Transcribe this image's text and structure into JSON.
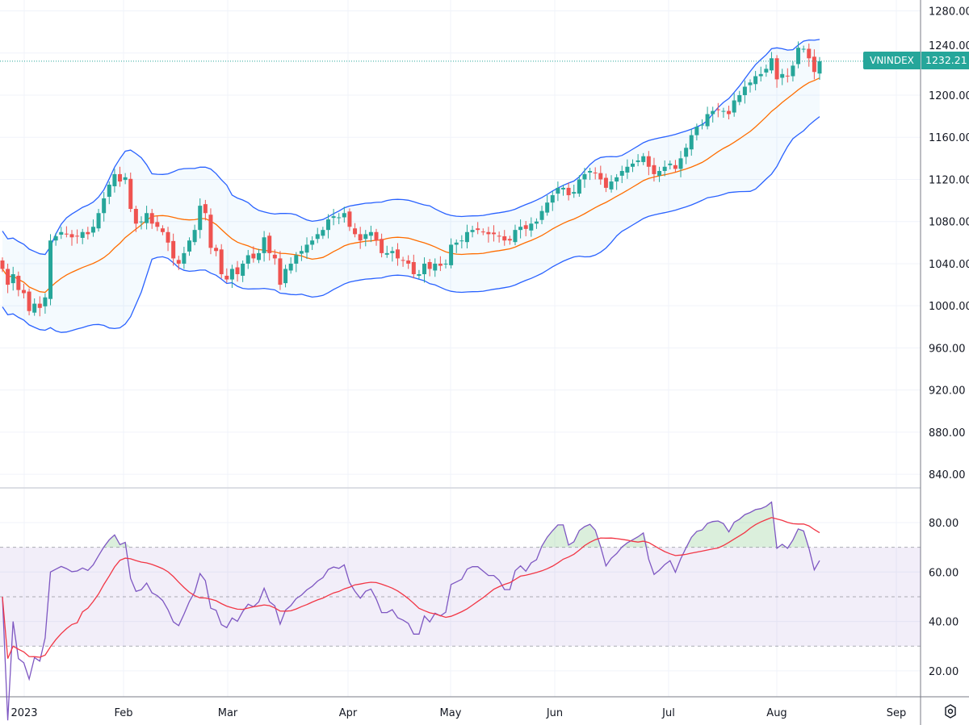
{
  "chart_data": {
    "type": "candlestick",
    "symbol": "VNINDEX",
    "last_price": "1232.21",
    "indicators": [
      "bollinger-bands",
      "rsi"
    ],
    "price_ticks": [
      "1280.00",
      "1240.00",
      "1200.00",
      "1160.00",
      "1120.00",
      "1080.00",
      "1040.00",
      "1000.00",
      "960.00",
      "920.00",
      "880.00",
      "840.00"
    ],
    "price_range": [
      824,
      1290
    ],
    "rsi_ticks": [
      "80.00",
      "60.00",
      "40.00",
      "20.00"
    ],
    "rsi_levels": {
      "upper": 70,
      "middle": 50,
      "lower": 30
    },
    "x_ticks": [
      "2023",
      "Feb",
      "Mar",
      "Apr",
      "May",
      "Jun",
      "Jul",
      "Aug",
      "Sep"
    ],
    "closes": [
      1035,
      1020,
      1030,
      1015,
      1012,
      995,
      1002,
      998,
      1008,
      1062,
      1066,
      1070,
      1068,
      1065,
      1066,
      1070,
      1068,
      1075,
      1088,
      1102,
      1115,
      1125,
      1118,
      1122,
      1092,
      1078,
      1080,
      1088,
      1078,
      1075,
      1070,
      1060,
      1045,
      1040,
      1050,
      1062,
      1072,
      1095,
      1088,
      1055,
      1052,
      1030,
      1025,
      1035,
      1030,
      1040,
      1048,
      1045,
      1050,
      1065,
      1050,
      1045,
      1020,
      1035,
      1040,
      1048,
      1052,
      1058,
      1062,
      1068,
      1072,
      1082,
      1085,
      1084,
      1088,
      1075,
      1068,
      1062,
      1068,
      1070,
      1062,
      1050,
      1050,
      1052,
      1045,
      1043,
      1040,
      1030,
      1030,
      1040,
      1035,
      1040,
      1038,
      1040,
      1058,
      1060,
      1062,
      1070,
      1072,
      1072,
      1070,
      1068,
      1068,
      1066,
      1062,
      1062,
      1072,
      1075,
      1073,
      1078,
      1080,
      1090,
      1098,
      1105,
      1112,
      1112,
      1105,
      1108,
      1120,
      1125,
      1128,
      1126,
      1120,
      1112,
      1118,
      1122,
      1128,
      1132,
      1135,
      1138,
      1142,
      1132,
      1125,
      1128,
      1132,
      1135,
      1130,
      1140,
      1150,
      1162,
      1170,
      1172,
      1182,
      1185,
      1186,
      1185,
      1182,
      1195,
      1200,
      1208,
      1212,
      1218,
      1220,
      1225,
      1235,
      1215,
      1220,
      1218,
      1228,
      1245,
      1244,
      1235,
      1222,
      1232.21
    ],
    "colors": {
      "up": "#26a69a",
      "down": "#ef5350",
      "band": "#2962ff",
      "basis": "#ff6d00",
      "rsi": "#7e57c2",
      "rsi_ma": "#f23645"
    }
  }
}
